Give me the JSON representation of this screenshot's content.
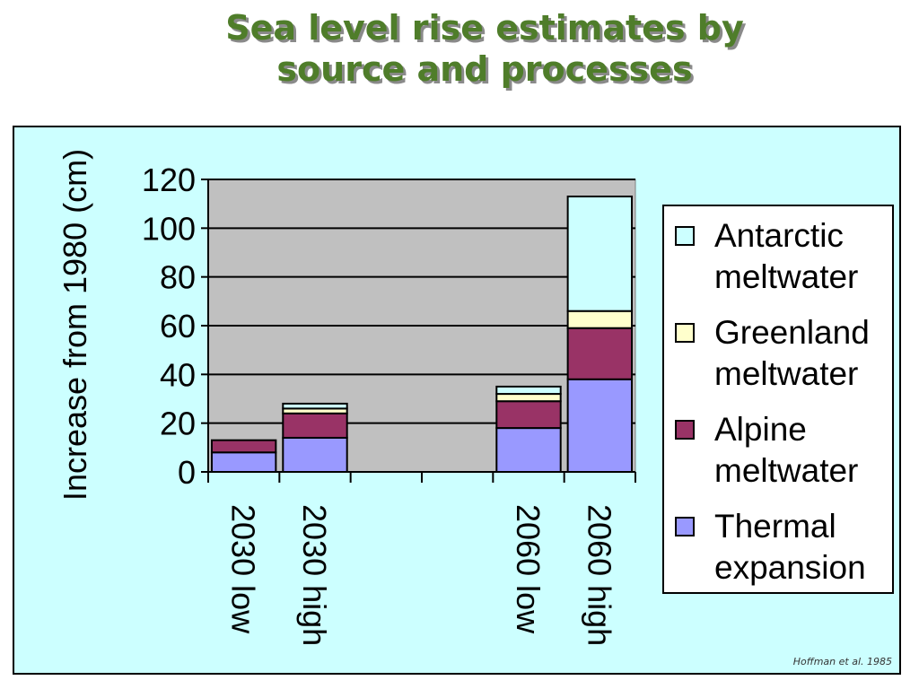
{
  "title": {
    "line1": "Sea level rise estimates by",
    "line2": "source and processes"
  },
  "citation": "Hoffman et al. 1985",
  "chart_data": {
    "type": "bar",
    "stacked": true,
    "categories": [
      "2030 low",
      "2030 high",
      "",
      "",
      "2060 low",
      "2060 high"
    ],
    "ylabel": "Increase from 1980 (cm)",
    "xlabel": "",
    "ylim": [
      0,
      120
    ],
    "yticks": [
      0,
      20,
      40,
      60,
      80,
      100,
      120
    ],
    "grid": true,
    "legend_position": "right",
    "plot_background": "#c0c0c0",
    "series": [
      {
        "name": "Thermal expansion",
        "color": "#9999ff",
        "values": [
          8,
          14,
          0,
          0,
          18,
          38
        ]
      },
      {
        "name": "Alpine meltwater",
        "color": "#993366",
        "values": [
          5,
          10,
          0,
          0,
          11,
          21
        ]
      },
      {
        "name": "Greenland meltwater",
        "color": "#ffffcc",
        "values": [
          0,
          2,
          0,
          0,
          3,
          7
        ]
      },
      {
        "name": "Antarctic meltwater",
        "color": "#ccffff",
        "values": [
          0,
          2,
          0,
          0,
          3,
          47
        ]
      }
    ],
    "legend_order": [
      {
        "line1": "Antarctic",
        "line2": "meltwater",
        "color": "#ccffff"
      },
      {
        "line1": "Greenland",
        "line2": "meltwater",
        "color": "#ffffcc"
      },
      {
        "line1": "Alpine",
        "line2": "meltwater",
        "color": "#993366"
      },
      {
        "line1": "Thermal",
        "line2": "expansion",
        "color": "#9999ff"
      }
    ]
  }
}
